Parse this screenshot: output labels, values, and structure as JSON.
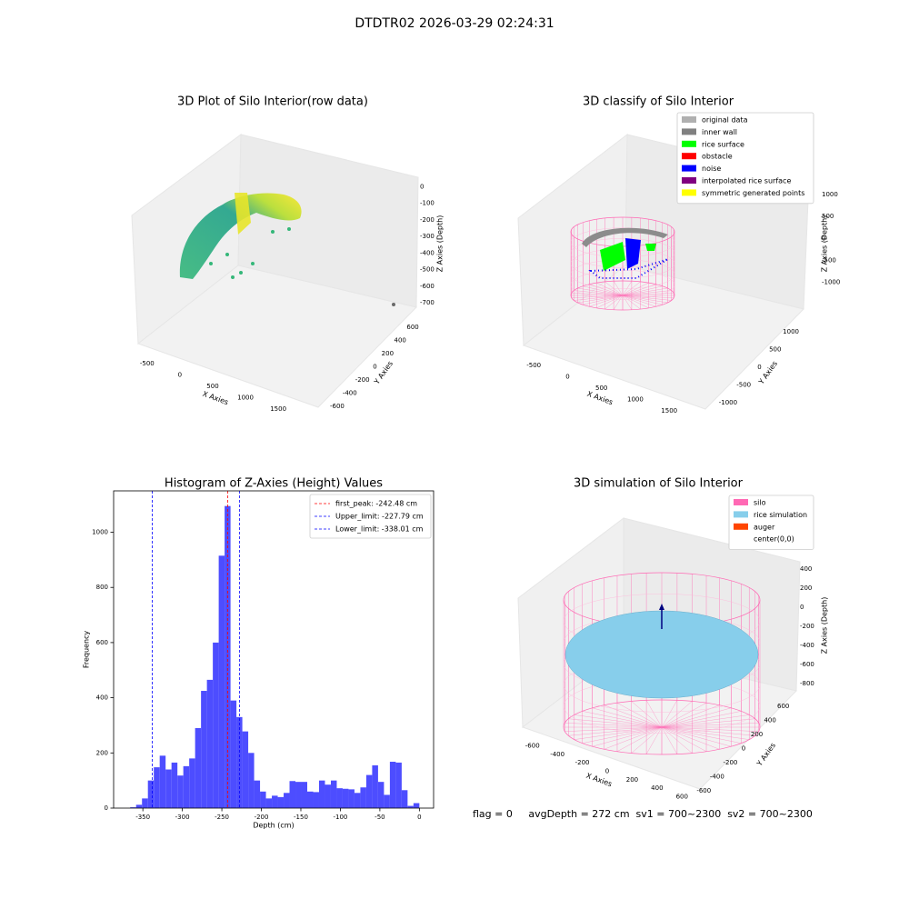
{
  "title": "DTDTR02 2026-03-29 02:24:31",
  "footer": "flag = 0     avgDepth = 272 cm  sv1 = 700~2300  sv2 = 700~2300",
  "chart_data": [
    {
      "type": "scatter3d",
      "title": "3D Plot of Silo Interior(row data)",
      "xlabel": "X Axies",
      "ylabel": "Y Axies",
      "zlabel": "Z Axies (Depth)",
      "xlim": [
        -650,
        1900
      ],
      "xticks": [
        -500,
        0,
        500,
        1000,
        1500
      ],
      "ylim": [
        -700,
        700
      ],
      "yticks": [
        -600,
        -400,
        -200,
        0,
        200,
        400,
        600
      ],
      "zlim": [
        -760,
        40
      ],
      "zticks": [
        0,
        -100,
        -200,
        -300,
        -400,
        -500,
        -600,
        -700
      ]
    },
    {
      "type": "scatter3d",
      "title": "3D classify of Silo Interior",
      "xlabel": "X Axies",
      "ylabel": "Y Axies",
      "zlabel": "Z Axies (Depth)",
      "xlim": [
        -650,
        1900
      ],
      "xticks": [
        -500,
        0,
        500,
        1000,
        1500
      ],
      "ylim": [
        -1200,
        1200
      ],
      "yticks": [
        -1000,
        -500,
        0,
        500,
        1000
      ],
      "zlim": [
        -1150,
        1100
      ],
      "zticks": [
        1000,
        500,
        0,
        -500,
        -1000
      ],
      "legend": {
        "position": "upper right",
        "items": [
          {
            "name": "original data",
            "color": "#b0b0b0"
          },
          {
            "name": "inner wall",
            "color": "#808080"
          },
          {
            "name": "rice surface",
            "color": "#00ff00"
          },
          {
            "name": "obstacle",
            "color": "#ff0000"
          },
          {
            "name": "noise",
            "color": "#0000ff"
          },
          {
            "name": "interpolated rice surface",
            "color": "#800080"
          },
          {
            "name": "symmetric generated points",
            "color": "#ffff00"
          }
        ]
      }
    },
    {
      "type": "histogram",
      "title": "Histogram of Z-Axies (Height) Values",
      "xlabel": "Depth (cm)",
      "ylabel": "Frequency",
      "color": "#4d4dff",
      "bins": [
        -366.03,
        -358.56,
        -351.09,
        -343.62,
        -336.15,
        -328.68,
        -321.21,
        -313.74,
        -306.27,
        -298.8,
        -291.33,
        -283.86,
        -276.39,
        -268.92,
        -261.45,
        -253.98,
        -246.51,
        -239.04,
        -231.57,
        -224.1,
        -216.63,
        -209.16,
        -201.69,
        -194.22,
        -186.75,
        -179.28,
        -171.81,
        -164.34,
        -156.87,
        -149.4,
        -141.93,
        -134.46,
        -126.99,
        -119.52,
        -112.05,
        -104.58,
        -97.11,
        -89.64,
        -82.17,
        -74.7,
        -67.23,
        -59.76,
        -52.29,
        -44.82,
        -37.35,
        -29.88,
        -22.41,
        -14.94,
        -7.47,
        0
      ],
      "counts": [
        3,
        12,
        35,
        100,
        148,
        190,
        140,
        165,
        118,
        152,
        180,
        290,
        425,
        465,
        600,
        915,
        1095,
        390,
        330,
        278,
        200,
        100,
        60,
        35,
        45,
        40,
        55,
        98,
        95,
        95,
        60,
        58,
        100,
        85,
        100,
        72,
        70,
        68,
        55,
        75,
        120,
        155,
        95,
        48,
        168,
        165,
        65,
        8,
        18
      ],
      "xlim": [
        -387,
        18
      ],
      "xticks": [
        -350,
        -300,
        -250,
        -200,
        -150,
        -100,
        -50,
        0
      ],
      "ylim": [
        0,
        1150
      ],
      "yticks": [
        0,
        200,
        400,
        600,
        800,
        1000
      ],
      "vlines": [
        {
          "label": "first_peak: -242.48 cm",
          "value": -242.48,
          "color": "#ff0000"
        },
        {
          "label": "Upper_limit: -227.79 cm",
          "value": -227.79,
          "color": "#0000ff"
        },
        {
          "label": "Lower_limit: -338.01 cm",
          "value": -338.01,
          "color": "#0000ff"
        }
      ],
      "legend": {
        "position": "upper right"
      }
    },
    {
      "type": "surface3d",
      "title": "3D simulation of Silo Interior",
      "xlabel": "X Axies",
      "ylabel": "Y Axies",
      "zlabel": "Z Axies (Depth)",
      "xlim": [
        -700,
        700
      ],
      "xticks": [
        -600,
        -400,
        -200,
        0,
        200,
        400,
        600
      ],
      "ylim": [
        -700,
        700
      ],
      "yticks": [
        -600,
        -400,
        -200,
        0,
        200,
        400,
        600
      ],
      "zlim": [
        -900,
        500
      ],
      "zticks": [
        400,
        200,
        0,
        -200,
        -400,
        -600,
        -800
      ],
      "legend": {
        "position": "upper right",
        "items": [
          {
            "name": "silo",
            "color": "#ff69b4"
          },
          {
            "name": "rice simulation",
            "color": "#87ceeb"
          },
          {
            "name": "auger",
            "color": "#ff4500"
          },
          {
            "name": "center(0,0)",
            "color": "#ffffff"
          }
        ]
      }
    }
  ]
}
